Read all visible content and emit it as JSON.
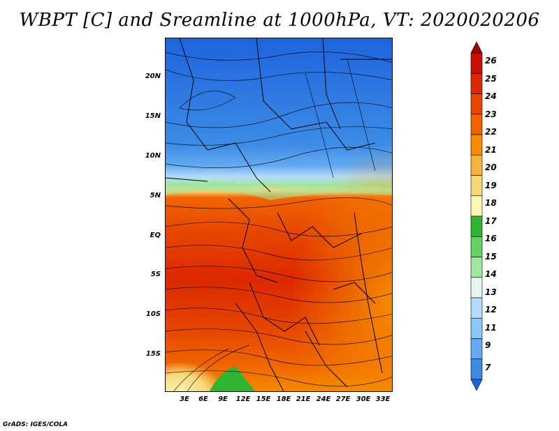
{
  "title": "WBPT [C] and Sreamline at 1000hPa, VT: 2020020206",
  "credit": "GrADS: IGES/COLA",
  "y_axis_labels": [
    "20N",
    "15N",
    "10N",
    "5N",
    "EQ",
    "5S",
    "10S",
    "15S"
  ],
  "x_axis_labels": [
    "3E",
    "6E",
    "9E",
    "12E",
    "15E",
    "18E",
    "21E",
    "24E",
    "27E",
    "30E",
    "33E"
  ],
  "colorbar": {
    "labels": [
      "26",
      "25",
      "24",
      "23",
      "22",
      "21",
      "20",
      "19",
      "18",
      "17",
      "16",
      "15",
      "14",
      "13",
      "12",
      "11",
      "9",
      "7"
    ],
    "colors": [
      "#a50000",
      "#c81000",
      "#dc2800",
      "#e64600",
      "#f06400",
      "#f58c00",
      "#f5b43c",
      "#f8d77c",
      "#fff5b4",
      "#32b432",
      "#64d264",
      "#a0e6a0",
      "#e6f5f0",
      "#b4dcfa",
      "#8cc8f5",
      "#64aaf0",
      "#3c8ce6",
      "#1e64dc"
    ]
  },
  "map": {
    "variable": "WBPT [C]",
    "level": "1000hPa",
    "valid_time": "2020020206",
    "lat_range": [
      "20N",
      "15S"
    ],
    "lon_range": [
      "3E",
      "33E"
    ],
    "colors": {
      "north_cool": "#3c8ce6",
      "north_deep": "#1e64dc",
      "transition": "#a0e6a0",
      "warm": "#f06400",
      "hot": "#dc2800",
      "south_warm": "#f58c00",
      "south_pale": "#f8d77c",
      "south_green": "#32b432"
    }
  }
}
